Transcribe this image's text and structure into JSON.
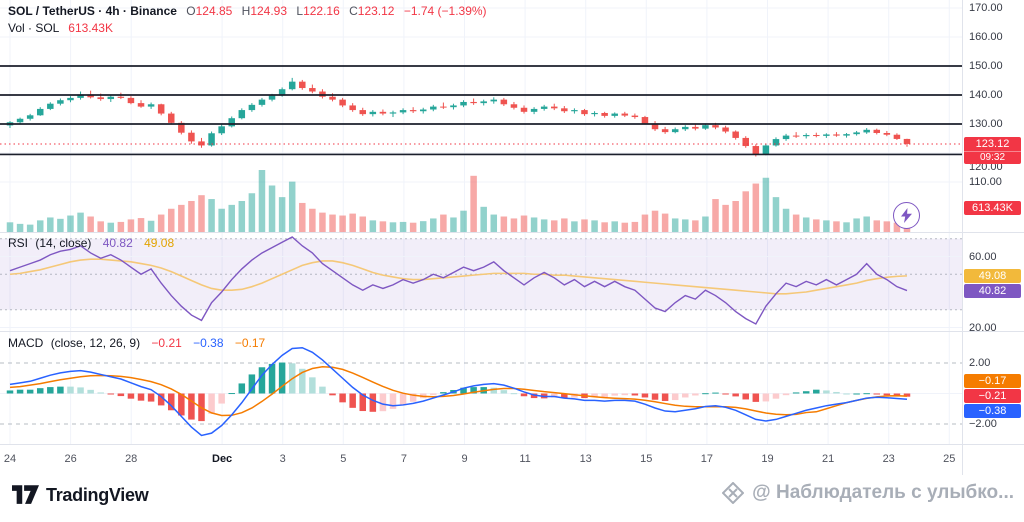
{
  "header": {
    "title": "SOL / TetherUS · 4h · Binance",
    "o_label": "O",
    "o": "124.85",
    "h_label": "H",
    "h": "124.93",
    "l_label": "L",
    "l": "122.16",
    "c_label": "C",
    "c": "123.12",
    "change": "−1.74 (−1.39%)",
    "vol_label": "Vol · SOL",
    "vol_value": "613.43K"
  },
  "rsi_legend": {
    "title": "RSI",
    "params": "(14, close)",
    "value": "40.82",
    "ma_value": "49.08"
  },
  "macd_legend": {
    "title": "MACD",
    "params": "(close, 12, 26, 9)",
    "hist": "−0.21",
    "macd": "−0.38",
    "signal": "−0.17"
  },
  "badges": {
    "price": {
      "value": "123.12",
      "countdown": "09:32",
      "bg": "#f23645"
    },
    "volume": {
      "value": "613.43K",
      "bg": "#f23645"
    },
    "rsi_ma": {
      "value": "49.08",
      "bg": "#f2b93b"
    },
    "rsi": {
      "value": "40.82",
      "bg": "#7e57c2"
    },
    "macd_signal": {
      "value": "−0.17",
      "bg": "#f57c00"
    },
    "macd_hist": {
      "value": "−0.21",
      "bg": "#f23645"
    },
    "macd_line": {
      "value": "−0.38",
      "bg": "#2962ff"
    }
  },
  "axis": {
    "price_ticks": [
      {
        "label": "170.00",
        "value": 170
      },
      {
        "label": "160.00",
        "value": 160
      },
      {
        "label": "150.00",
        "value": 150
      },
      {
        "label": "140.00",
        "value": 140
      },
      {
        "label": "130.00",
        "value": 130
      },
      {
        "label": "120.00",
        "value": 120,
        "nudge": 14
      },
      {
        "label": "110.00",
        "value": 110
      }
    ],
    "rsi_ticks": [
      {
        "label": "60.00",
        "value": 60
      },
      {
        "label": "20.00",
        "value": 20
      }
    ],
    "macd_ticks": [
      {
        "label": "2.00",
        "value": 2
      },
      {
        "label": "−2.00",
        "value": -2
      }
    ]
  },
  "time_axis": {
    "labels": [
      {
        "text": "24",
        "day": 0
      },
      {
        "text": "26",
        "day": 2
      },
      {
        "text": "28",
        "day": 4
      },
      {
        "text": "Dec",
        "day": 7,
        "major": true
      },
      {
        "text": "3",
        "day": 9
      },
      {
        "text": "5",
        "day": 11
      },
      {
        "text": "7",
        "day": 13
      },
      {
        "text": "9",
        "day": 15
      },
      {
        "text": "11",
        "day": 17
      },
      {
        "text": "13",
        "day": 19
      },
      {
        "text": "15",
        "day": 21
      },
      {
        "text": "17",
        "day": 23
      },
      {
        "text": "19",
        "day": 25
      },
      {
        "text": "21",
        "day": 27
      },
      {
        "text": "23",
        "day": 29
      },
      {
        "text": "25",
        "day": 31
      }
    ]
  },
  "footer": {
    "brand": "TradingView",
    "watermark": "@ Наблюдатель с улыбко..."
  },
  "colors": {
    "up": "#26a69a",
    "down": "#ef5350",
    "volUp": "rgba(38,166,154,0.5)",
    "volDown": "rgba(239,83,80,0.5)",
    "rsi": "#7e57c2",
    "rsiMa": "#f5c878",
    "macd": "#2962ff",
    "signal": "#f57c00",
    "histPosRise": "#26a69a",
    "histPosFall": "#b2dfdb",
    "histNegFall": "#ef5350",
    "histNegRise": "#fccbcd",
    "level": "#1b1f2b",
    "priceLine": "#f23645",
    "grid": "#f0f3fa",
    "dashed": "#9aa0ab",
    "separator": "#e0e3eb",
    "rsiBand": "rgba(126,87,194,0.10)"
  },
  "chart_data": {
    "type": "candlestick",
    "title": "SOL / TetherUS · 4h · Binance",
    "last_price": 123.12,
    "levels": [
      150,
      140,
      130,
      119.5
    ],
    "price_axis_range": [
      108,
      172
    ],
    "volume_max": 3200,
    "volume_unit": "K",
    "candles": [
      [
        129.5,
        131.0,
        128.6,
        130.6
      ],
      [
        130.6,
        132.2,
        130.0,
        131.8
      ],
      [
        131.8,
        133.5,
        131.2,
        133.0
      ],
      [
        133.0,
        135.8,
        132.8,
        135.2
      ],
      [
        135.2,
        137.5,
        134.8,
        137.0
      ],
      [
        137.0,
        138.8,
        136.4,
        138.2
      ],
      [
        138.2,
        139.6,
        137.5,
        139.0
      ],
      [
        139.0,
        141.2,
        138.4,
        140.2
      ],
      [
        140.2,
        141.5,
        138.8,
        139.2
      ],
      [
        139.2,
        140.5,
        138.0,
        138.6
      ],
      [
        138.6,
        139.8,
        137.6,
        139.4
      ],
      [
        139.4,
        140.8,
        138.6,
        139.0
      ],
      [
        139.0,
        139.6,
        136.8,
        137.2
      ],
      [
        137.2,
        138.2,
        135.6,
        136.0
      ],
      [
        136.0,
        137.4,
        135.2,
        136.8
      ],
      [
        136.8,
        137.0,
        133.0,
        133.6
      ],
      [
        133.6,
        134.2,
        129.8,
        130.4
      ],
      [
        130.4,
        131.0,
        126.4,
        127.0
      ],
      [
        127.0,
        127.8,
        123.2,
        124.0
      ],
      [
        124.0,
        125.2,
        121.8,
        122.6
      ],
      [
        122.6,
        127.4,
        122.2,
        126.8
      ],
      [
        126.8,
        129.8,
        126.2,
        129.2
      ],
      [
        129.2,
        132.6,
        128.8,
        132.0
      ],
      [
        132.0,
        135.4,
        131.6,
        134.8
      ],
      [
        134.8,
        137.2,
        134.2,
        136.6
      ],
      [
        136.6,
        139.0,
        136.0,
        138.4
      ],
      [
        138.4,
        140.4,
        137.8,
        139.8
      ],
      [
        139.8,
        142.6,
        139.4,
        142.0
      ],
      [
        142.0,
        145.9,
        141.6,
        144.6
      ],
      [
        144.6,
        145.2,
        141.8,
        142.4
      ],
      [
        142.4,
        143.6,
        140.6,
        141.2
      ],
      [
        141.2,
        142.0,
        138.8,
        139.4
      ],
      [
        139.4,
        140.6,
        137.8,
        138.4
      ],
      [
        138.4,
        139.0,
        135.8,
        136.4
      ],
      [
        136.4,
        137.2,
        134.2,
        134.8
      ],
      [
        134.8,
        135.6,
        132.8,
        133.4
      ],
      [
        133.4,
        134.8,
        132.6,
        134.2
      ],
      [
        134.2,
        135.0,
        133.0,
        133.6
      ],
      [
        133.6,
        134.6,
        132.4,
        134.0
      ],
      [
        134.0,
        135.4,
        133.4,
        134.8
      ],
      [
        134.8,
        135.8,
        133.8,
        134.4
      ],
      [
        134.4,
        135.6,
        133.6,
        135.0
      ],
      [
        135.0,
        136.6,
        134.4,
        136.0
      ],
      [
        136.0,
        137.4,
        135.2,
        135.8
      ],
      [
        135.8,
        137.0,
        135.0,
        136.4
      ],
      [
        136.4,
        138.2,
        135.8,
        137.6
      ],
      [
        137.6,
        138.8,
        136.6,
        137.2
      ],
      [
        137.2,
        138.4,
        136.4,
        137.8
      ],
      [
        137.8,
        139.2,
        137.0,
        138.4
      ],
      [
        138.4,
        139.0,
        136.2,
        136.8
      ],
      [
        136.8,
        137.6,
        135.0,
        135.6
      ],
      [
        135.6,
        136.4,
        133.6,
        134.2
      ],
      [
        134.2,
        135.8,
        133.4,
        135.2
      ],
      [
        135.2,
        136.6,
        134.6,
        136.0
      ],
      [
        136.0,
        137.0,
        134.8,
        135.4
      ],
      [
        135.4,
        136.2,
        133.8,
        134.4
      ],
      [
        134.4,
        135.4,
        133.6,
        134.8
      ],
      [
        134.8,
        135.2,
        132.8,
        133.4
      ],
      [
        133.4,
        134.4,
        132.6,
        133.8
      ],
      [
        133.8,
        134.2,
        132.2,
        132.8
      ],
      [
        132.8,
        134.0,
        132.2,
        133.6
      ],
      [
        133.6,
        134.2,
        132.4,
        132.9
      ],
      [
        132.9,
        133.6,
        131.8,
        132.4
      ],
      [
        132.4,
        132.8,
        129.8,
        130.2
      ],
      [
        130.2,
        131.0,
        127.6,
        128.2
      ],
      [
        128.2,
        129.0,
        126.6,
        127.2
      ],
      [
        127.2,
        128.8,
        126.8,
        128.2
      ],
      [
        128.2,
        129.6,
        127.6,
        129.0
      ],
      [
        129.0,
        129.8,
        127.8,
        128.4
      ],
      [
        128.4,
        130.2,
        128.0,
        129.6
      ],
      [
        129.6,
        130.4,
        128.2,
        128.8
      ],
      [
        128.8,
        129.4,
        126.8,
        127.4
      ],
      [
        127.4,
        127.8,
        124.6,
        125.2
      ],
      [
        125.2,
        125.8,
        121.8,
        122.4
      ],
      [
        122.4,
        123.0,
        118.8,
        119.6
      ],
      [
        119.6,
        123.2,
        119.2,
        122.6
      ],
      [
        122.6,
        125.4,
        122.2,
        124.8
      ],
      [
        124.8,
        126.6,
        124.2,
        126.0
      ],
      [
        126.0,
        127.2,
        125.2,
        125.8
      ],
      [
        125.8,
        126.8,
        125.0,
        126.2
      ],
      [
        126.2,
        127.0,
        125.4,
        125.9
      ],
      [
        125.9,
        126.8,
        125.2,
        126.4
      ],
      [
        126.4,
        127.2,
        125.6,
        126.0
      ],
      [
        126.0,
        126.9,
        125.3,
        126.5
      ],
      [
        126.5,
        127.6,
        126.0,
        127.1
      ],
      [
        127.1,
        128.6,
        126.6,
        128.0
      ],
      [
        128.0,
        128.4,
        126.4,
        126.9
      ],
      [
        126.9,
        127.6,
        125.8,
        126.3
      ],
      [
        126.3,
        126.8,
        124.5,
        124.85
      ],
      [
        124.85,
        124.93,
        122.16,
        123.12
      ]
    ],
    "volumes": [
      500,
      420,
      380,
      600,
      750,
      680,
      850,
      1000,
      800,
      550,
      480,
      520,
      650,
      720,
      580,
      900,
      1200,
      1400,
      1600,
      1900,
      1700,
      1200,
      1400,
      1600,
      2000,
      3200,
      2400,
      1800,
      2600,
      1500,
      1200,
      1000,
      900,
      850,
      950,
      800,
      600,
      550,
      500,
      520,
      480,
      560,
      700,
      900,
      750,
      1100,
      2900,
      1300,
      900,
      800,
      700,
      850,
      750,
      650,
      600,
      700,
      550,
      650,
      600,
      500,
      550,
      480,
      520,
      900,
      1100,
      950,
      700,
      650,
      600,
      800,
      1700,
      1400,
      1600,
      2100,
      2500,
      2800,
      1800,
      1200,
      900,
      750,
      650,
      600,
      550,
      500,
      700,
      800,
      600,
      550,
      480,
      613.43
    ],
    "rsi": {
      "band": [
        30,
        70
      ],
      "mid": 50,
      "last": 40.82,
      "ma_last": 49.08,
      "values": [
        52,
        54,
        56,
        58,
        61,
        63,
        64,
        66,
        62,
        59,
        61,
        58,
        54,
        50,
        53,
        45,
        38,
        32,
        27,
        24,
        34,
        40,
        47,
        53,
        58,
        62,
        65,
        68,
        71,
        66,
        62,
        56,
        52,
        48,
        44,
        41,
        44,
        42,
        44,
        47,
        45,
        47,
        50,
        48,
        51,
        54,
        52,
        54,
        57,
        52,
        48,
        44,
        48,
        51,
        48,
        44,
        47,
        43,
        46,
        43,
        46,
        43,
        41,
        36,
        31,
        29,
        34,
        38,
        36,
        41,
        38,
        34,
        29,
        25,
        22,
        32,
        39,
        45,
        43,
        46,
        44,
        47,
        44,
        47,
        50,
        56,
        50,
        47,
        43,
        40.82
      ],
      "ma": [
        50,
        50.5,
        51.5,
        52.5,
        54,
        55.5,
        57,
        58,
        58.5,
        58.5,
        58,
        57.5,
        57,
        56,
        55,
        53.5,
        51.5,
        49,
        46.5,
        44,
        42,
        41,
        41,
        41.5,
        43,
        45,
        47.5,
        50,
        52.5,
        55,
        56.5,
        57.5,
        57.5,
        56.5,
        55,
        53,
        51,
        49.5,
        48.5,
        47.5,
        47,
        47,
        47.5,
        48,
        48.5,
        49,
        49.5,
        50,
        50.5,
        50.5,
        50.5,
        50.5,
        50,
        50,
        49.5,
        49.5,
        49,
        48.5,
        48,
        47.5,
        47,
        46.5,
        46,
        45.5,
        45,
        44.5,
        44,
        43.5,
        43,
        42.5,
        42,
        41.5,
        41,
        40.5,
        40,
        39.5,
        39,
        39,
        39.5,
        40,
        41,
        42,
        43,
        44,
        45,
        46.5,
        47.5,
        48.3,
        48.8,
        49.08
      ]
    },
    "macd": {
      "last": {
        "hist": -0.21,
        "macd": -0.38,
        "signal": -0.17
      },
      "macd": [
        0.6,
        0.7,
        0.8,
        1.0,
        1.2,
        1.35,
        1.45,
        1.5,
        1.4,
        1.25,
        1.1,
        0.95,
        0.7,
        0.45,
        0.25,
        -0.2,
        -0.8,
        -1.5,
        -2.2,
        -2.75,
        -2.6,
        -2.1,
        -1.4,
        -0.6,
        0.3,
        1.2,
        1.9,
        2.5,
        2.95,
        3.0,
        2.7,
        2.2,
        1.6,
        1.0,
        0.4,
        -0.1,
        -0.45,
        -0.7,
        -0.8,
        -0.75,
        -0.65,
        -0.5,
        -0.3,
        -0.1,
        0.1,
        0.35,
        0.5,
        0.6,
        0.65,
        0.55,
        0.35,
        0.1,
        -0.1,
        -0.2,
        -0.2,
        -0.3,
        -0.35,
        -0.45,
        -0.45,
        -0.5,
        -0.45,
        -0.45,
        -0.5,
        -0.7,
        -0.95,
        -1.15,
        -1.2,
        -1.1,
        -1.0,
        -0.85,
        -0.8,
        -0.9,
        -1.1,
        -1.4,
        -1.7,
        -1.8,
        -1.7,
        -1.5,
        -1.3,
        -1.1,
        -0.95,
        -0.8,
        -0.7,
        -0.6,
        -0.45,
        -0.3,
        -0.25,
        -0.28,
        -0.33,
        -0.38
      ],
      "signal": [
        0.4,
        0.45,
        0.55,
        0.65,
        0.78,
        0.9,
        1.0,
        1.1,
        1.16,
        1.18,
        1.16,
        1.12,
        1.04,
        0.92,
        0.78,
        0.58,
        0.3,
        -0.06,
        -0.49,
        -0.94,
        -1.27,
        -1.44,
        -1.43,
        -1.26,
        -0.95,
        -0.52,
        -0.04,
        0.47,
        0.97,
        1.38,
        1.64,
        1.75,
        1.72,
        1.58,
        1.34,
        1.05,
        0.75,
        0.46,
        0.21,
        0.02,
        -0.11,
        -0.19,
        -0.21,
        -0.19,
        -0.13,
        -0.03,
        0.08,
        0.18,
        0.27,
        0.33,
        0.33,
        0.28,
        0.2,
        0.12,
        0.06,
        -0.01,
        -0.08,
        -0.15,
        -0.21,
        -0.27,
        -0.31,
        -0.34,
        -0.37,
        -0.44,
        -0.54,
        -0.66,
        -0.77,
        -0.84,
        -0.87,
        -0.87,
        -0.86,
        -0.87,
        -0.91,
        -1.01,
        -1.15,
        -1.28,
        -1.36,
        -1.39,
        -1.37,
        -1.25,
        -1.2,
        -1.0,
        -0.8,
        -0.6,
        -0.45,
        -0.32,
        -0.22,
        -0.16,
        -0.15,
        -0.17
      ]
    }
  }
}
